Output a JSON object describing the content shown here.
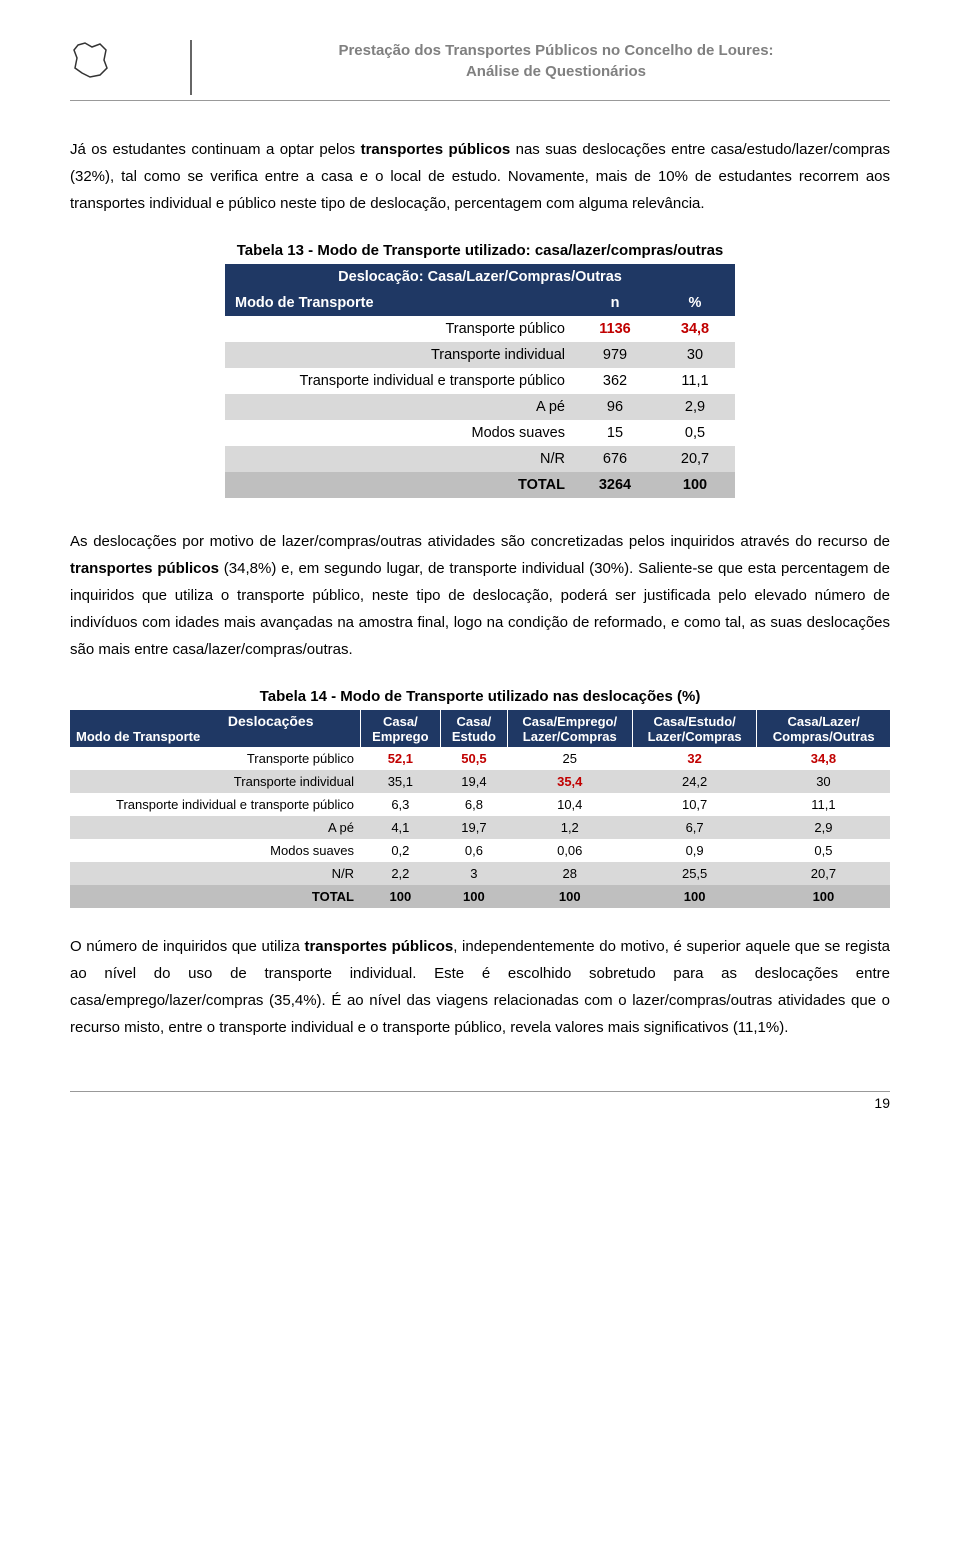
{
  "header": {
    "title_line1": "Prestação dos Transportes Públicos no Concelho de Loures:",
    "title_line2": "Análise de Questionários"
  },
  "para1_a": "Já os estudantes continuam a optar pelos ",
  "para1_b": "transportes públicos",
  "para1_c": " nas suas deslocações entre casa/estudo/lazer/compras (32%), tal como se verifica entre a casa e o local de estudo. Novamente, mais de 10% de estudantes recorrem aos transportes individual e público neste tipo de deslocação, percentagem com alguma relevância.",
  "table13": {
    "caption": "Tabela 13 - Modo de Transporte utilizado: casa/lazer/compras/outras",
    "header": "Deslocação: Casa/Lazer/Compras/Outras",
    "col_label": "Modo de Transporte",
    "col_n": "n",
    "col_pct": "%",
    "rows": [
      {
        "label": "Transporte público",
        "n": "1136",
        "pct": "34,8",
        "highlight": true
      },
      {
        "label": "Transporte individual",
        "n": "979",
        "pct": "30"
      },
      {
        "label": "Transporte individual e transporte público",
        "n": "362",
        "pct": "11,1"
      },
      {
        "label": "A pé",
        "n": "96",
        "pct": "2,9"
      },
      {
        "label": "Modos suaves",
        "n": "15",
        "pct": "0,5"
      },
      {
        "label": "N/R",
        "n": "676",
        "pct": "20,7"
      }
    ],
    "total": {
      "label": "TOTAL",
      "n": "3264",
      "pct": "100"
    }
  },
  "para2_a": "As deslocações por motivo de lazer/compras/outras atividades são concretizadas pelos inquiridos através do recurso de ",
  "para2_b": "transportes públicos",
  "para2_c": " (34,8%) e, em segundo lugar, de transporte individual (30%). Saliente-se que esta percentagem de inquiridos que utiliza o transporte público, neste tipo de deslocação, poderá ser justificada pelo elevado número de indivíduos com idades mais avançadas na amostra final, logo na condição de reformado, e como tal, as suas deslocações são mais entre casa/lazer/compras/outras.",
  "table14": {
    "caption": "Tabela 14 - Modo de Transporte utilizado nas deslocações (%)",
    "row_header_top": "Deslocações",
    "row_header_bottom": "Modo de Transporte",
    "cols": [
      {
        "l1": "Casa/",
        "l2": "Emprego"
      },
      {
        "l1": "Casa/",
        "l2": "Estudo"
      },
      {
        "l1": "Casa/Emprego/",
        "l2": "Lazer/Compras"
      },
      {
        "l1": "Casa/Estudo/",
        "l2": "Lazer/Compras"
      },
      {
        "l1": "Casa/Lazer/",
        "l2": "Compras/Outras"
      }
    ],
    "rows": [
      {
        "label": "Transporte público",
        "v": [
          "52,1",
          "50,5",
          "25",
          "32",
          "34,8"
        ],
        "hi": [
          true,
          true,
          false,
          true,
          true
        ]
      },
      {
        "label": "Transporte individual",
        "v": [
          "35,1",
          "19,4",
          "35,4",
          "24,2",
          "30"
        ],
        "hi": [
          false,
          false,
          true,
          false,
          false
        ]
      },
      {
        "label": "Transporte individual e transporte público",
        "v": [
          "6,3",
          "6,8",
          "10,4",
          "10,7",
          "11,1"
        ],
        "hi": [
          false,
          false,
          false,
          false,
          false
        ]
      },
      {
        "label": "A pé",
        "v": [
          "4,1",
          "19,7",
          "1,2",
          "6,7",
          "2,9"
        ],
        "hi": [
          false,
          false,
          false,
          false,
          false
        ]
      },
      {
        "label": "Modos suaves",
        "v": [
          "0,2",
          "0,6",
          "0,06",
          "0,9",
          "0,5"
        ],
        "hi": [
          false,
          false,
          false,
          false,
          false
        ]
      },
      {
        "label": "N/R",
        "v": [
          "2,2",
          "3",
          "28",
          "25,5",
          "20,7"
        ],
        "hi": [
          false,
          false,
          false,
          false,
          false
        ]
      }
    ],
    "total": {
      "label": "TOTAL",
      "v": [
        "100",
        "100",
        "100",
        "100",
        "100"
      ]
    }
  },
  "para3_a": "O número de inquiridos que utiliza ",
  "para3_b": "transportes públicos",
  "para3_c": ", independentemente do motivo, é superior aquele que se regista ao nível do uso de transporte individual. Este é escolhido sobretudo para  as deslocações entre casa/emprego/lazer/compras (35,4%). É ao nível das viagens relacionadas com o lazer/compras/outras atividades que o recurso misto, entre o transporte individual e o transporte público, revela valores mais significativos (11,1%).",
  "page_number": "19"
}
